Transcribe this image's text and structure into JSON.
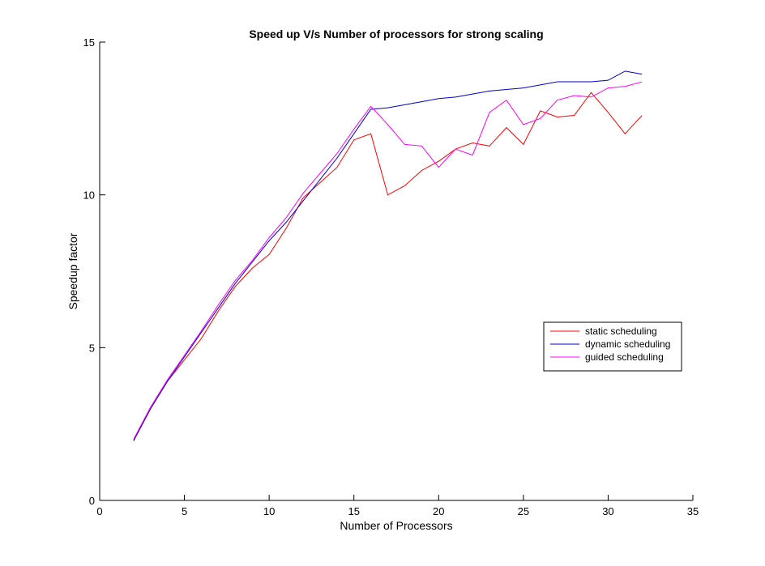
{
  "chart_data": {
    "type": "line",
    "title": "Speed up V/s Number of processors for strong scaling",
    "xlabel": "Number of Processors",
    "ylabel": "Speedup factor",
    "xlim": [
      0,
      35
    ],
    "ylim": [
      0,
      15
    ],
    "xticks": [
      0,
      5,
      10,
      15,
      20,
      25,
      30,
      35
    ],
    "yticks": [
      0,
      5,
      10,
      15
    ],
    "grid": false,
    "legend_position": "right",
    "x": [
      2,
      3,
      4,
      5,
      6,
      7,
      8,
      9,
      10,
      11,
      12,
      13,
      14,
      15,
      16,
      17,
      18,
      19,
      20,
      21,
      22,
      23,
      24,
      25,
      26,
      27,
      28,
      29,
      30,
      31,
      32
    ],
    "series": [
      {
        "name": "static scheduling",
        "color": "#ff0000",
        "values": [
          1.95,
          3.0,
          3.9,
          4.6,
          5.3,
          6.2,
          7.0,
          7.6,
          8.05,
          8.9,
          9.9,
          10.4,
          10.9,
          11.8,
          12.0,
          10.0,
          10.3,
          10.8,
          11.1,
          11.5,
          11.7,
          11.6,
          12.2,
          11.65,
          12.75,
          12.55,
          12.6,
          13.35,
          12.7,
          12.0,
          12.6
        ]
      },
      {
        "name": "dynamic scheduling",
        "color": "#0000cc",
        "values": [
          1.95,
          3.0,
          3.9,
          4.7,
          5.5,
          6.3,
          7.1,
          7.8,
          8.5,
          9.1,
          9.8,
          10.5,
          11.2,
          12.0,
          12.8,
          12.85,
          12.95,
          13.05,
          13.15,
          13.2,
          13.3,
          13.4,
          13.45,
          13.5,
          13.6,
          13.7,
          13.7,
          13.7,
          13.75,
          14.05,
          13.95
        ]
      },
      {
        "name": "guided scheduling",
        "color": "#ff00ff",
        "values": [
          2.0,
          3.05,
          3.95,
          4.75,
          5.55,
          6.4,
          7.2,
          7.85,
          8.6,
          9.25,
          10.05,
          10.7,
          11.35,
          12.15,
          12.9,
          12.3,
          11.65,
          11.6,
          10.9,
          11.5,
          11.3,
          12.7,
          13.1,
          12.3,
          12.5,
          13.1,
          13.25,
          13.2,
          13.5,
          13.55,
          13.7
        ]
      }
    ]
  }
}
